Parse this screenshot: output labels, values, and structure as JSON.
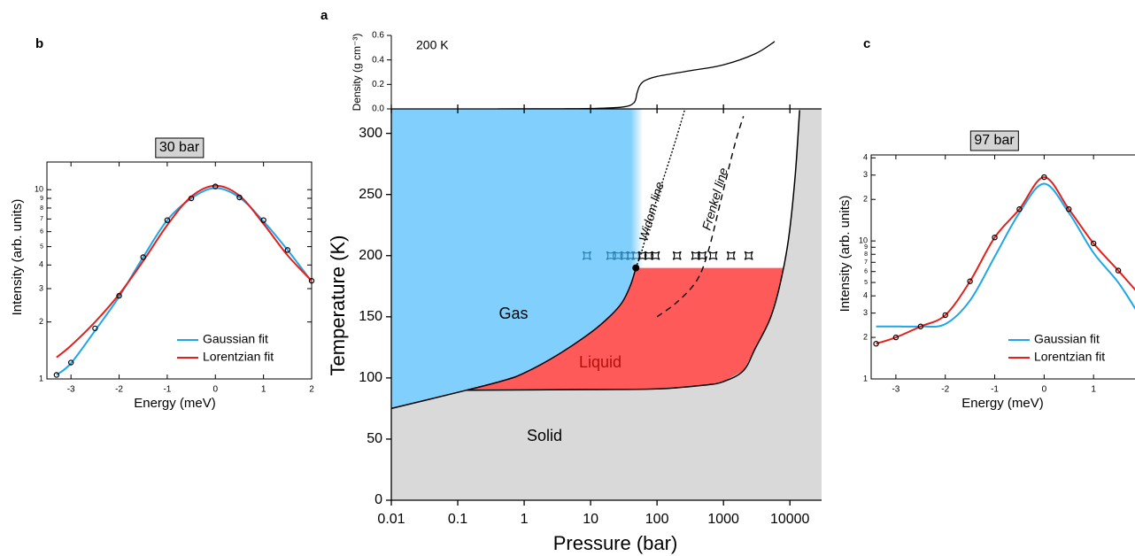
{
  "chart_data": [
    {
      "type": "line",
      "panel_label": "b",
      "title": "30 bar",
      "xlabel": "Energy (meV)",
      "ylabel": "Intensity (arb. units)",
      "x": [
        -3.3,
        -3,
        -2.5,
        -2,
        -1.5,
        -1,
        -0.5,
        0,
        0.5,
        1,
        1.5,
        2
      ],
      "series": [
        {
          "name": "Gaussian fit",
          "color": "#1ea5ea",
          "values": [
            1.05,
            1.21,
            1.8,
            2.72,
            4.4,
            6.9,
            9.0,
            10.2,
            9.1,
            6.8,
            4.8,
            3.27
          ]
        },
        {
          "name": "Lorentzian fit",
          "color": "#e3201b",
          "values": [
            1.3,
            1.5,
            2.0,
            2.8,
            4.2,
            6.5,
            9.2,
            10.5,
            9.3,
            6.6,
            4.5,
            3.3
          ]
        },
        {
          "color": "#000000",
          "style": "markers",
          "values": [
            1.05,
            1.22,
            1.85,
            2.75,
            4.4,
            6.9,
            9.0,
            10.4,
            9.1,
            6.9,
            4.8,
            3.3
          ]
        }
      ],
      "xlim": [
        -3.5,
        2
      ],
      "xticks": [
        -3,
        -2,
        -1,
        0,
        1,
        2
      ],
      "log_y": true,
      "ylim": [
        1,
        14
      ],
      "yticks": [
        1,
        2,
        3,
        4,
        5,
        6,
        7,
        8,
        9,
        10
      ],
      "legend": "lower right"
    },
    {
      "type": "line",
      "panel_label": "a",
      "ylabel": "Density (g cm⁻³)",
      "annotation": "200 K",
      "log_x": true,
      "xlim": [
        0.01,
        30000
      ],
      "x": [
        0.4,
        3,
        10,
        30,
        45,
        50,
        55,
        65,
        100,
        300,
        1000,
        3000,
        5900
      ],
      "series": [
        {
          "color": "#000000",
          "values": [
            0,
            0.001,
            0.003,
            0.015,
            0.05,
            0.13,
            0.19,
            0.23,
            0.265,
            0.31,
            0.36,
            0.45,
            0.55
          ]
        }
      ],
      "ylim": [
        0,
        0.6
      ],
      "yticks": [
        {
          "value": 0,
          "label": "0.0"
        },
        0.2,
        0.4,
        0.6
      ]
    },
    {
      "type": "phase",
      "xlabel": "Pressure (bar)",
      "ylabel": "Temperature (K)",
      "log_x": true,
      "xlim": [
        0.01,
        30000
      ],
      "xticks": [
        0.01,
        0.1,
        1,
        10,
        100,
        1000,
        10000
      ],
      "ylim": [
        0,
        320
      ],
      "yticks": [
        0,
        50,
        100,
        150,
        200,
        250,
        300
      ],
      "regions": [
        {
          "label": "Gas",
          "color": "#80cffd",
          "text_color": "#000000"
        },
        {
          "label": "Liquid",
          "color": "#ff5a5a",
          "text_color": "#b3100c"
        },
        {
          "label": "Solid",
          "color": "#d9d9d9",
          "text_color": "#000000"
        }
      ],
      "vaporization": {
        "x": [
          0.01,
          0.136,
          0.5,
          1,
          3,
          10,
          20,
          30,
          40,
          48
        ],
        "values": [
          75,
          90,
          98,
          104,
          118,
          137,
          151,
          162,
          176,
          190
        ]
      },
      "melting": {
        "x": [
          0.136,
          10,
          100,
          500,
          1000,
          2000,
          3000,
          5000,
          7000,
          9500,
          12000,
          14000
        ],
        "values": [
          90,
          90.5,
          91,
          94,
          97,
          106,
          124,
          148,
          175,
          213,
          265,
          319
        ]
      },
      "critical_point": {
        "x": 48,
        "value": 190
      },
      "widom": {
        "label": "Widom line",
        "x": [
          48,
          60,
          80,
          120,
          180,
          260
        ],
        "values": [
          190,
          205,
          230,
          260,
          290,
          319
        ]
      },
      "frenkel": {
        "label": "Frenkel line",
        "x": [
          100,
          200,
          400,
          600,
          950,
          1500,
          2000
        ],
        "values": [
          150,
          162,
          180,
          205,
          249,
          292,
          314
        ]
      },
      "measurements": [
        {
          "color": "#2a7fb0",
          "x": [
            8.8,
            20,
            26,
            33,
            40,
            48
          ],
          "values": [
            200,
            200,
            200,
            200,
            200,
            200
          ]
        },
        {
          "color": "#000000",
          "x": [
            60,
            75,
            95,
            200,
            380,
            480,
            700,
            1300,
            2400
          ],
          "values": [
            200,
            200,
            200,
            200,
            200,
            200,
            200,
            200,
            200
          ]
        }
      ]
    },
    {
      "type": "line",
      "panel_label": "c",
      "title": "97 bar",
      "xlabel": "Energy (meV)",
      "ylabel": "Intensity (arb. units)",
      "x": [
        -3.4,
        -3,
        -2.5,
        -2,
        -1.5,
        -1,
        -0.5,
        0,
        0.5,
        1,
        1.5,
        1.9
      ],
      "series": [
        {
          "name": "Gaussian fit",
          "color": "#1ea5ea",
          "values": [
            2.4,
            2.4,
            2.4,
            2.5,
            3.7,
            7.7,
            16,
            26,
            16,
            8.2,
            5.0,
            3.0
          ]
        },
        {
          "name": "Lorentzian fit",
          "color": "#e3201b",
          "values": [
            1.8,
            2.0,
            2.4,
            2.9,
            5.1,
            10.6,
            17,
            29,
            17,
            9.6,
            6.1,
            4.2
          ]
        },
        {
          "color": "#000000",
          "style": "markers",
          "values": [
            1.8,
            2.0,
            2.4,
            2.9,
            5.1,
            10.6,
            17,
            29,
            17,
            9.6,
            6.1,
            4.2
          ]
        }
      ],
      "xlim": [
        -3.5,
        2
      ],
      "xticks": [
        -3,
        -2,
        -1,
        0,
        1
      ],
      "log_y": true,
      "ylim": [
        1,
        42
      ],
      "yticks": [
        1,
        2,
        3,
        4,
        5,
        6,
        7,
        8,
        9,
        10,
        {
          "value": 20,
          "label": "2"
        },
        {
          "value": 30,
          "label": "3"
        },
        {
          "value": 40,
          "label": "4"
        }
      ],
      "legend": "lower right"
    }
  ]
}
